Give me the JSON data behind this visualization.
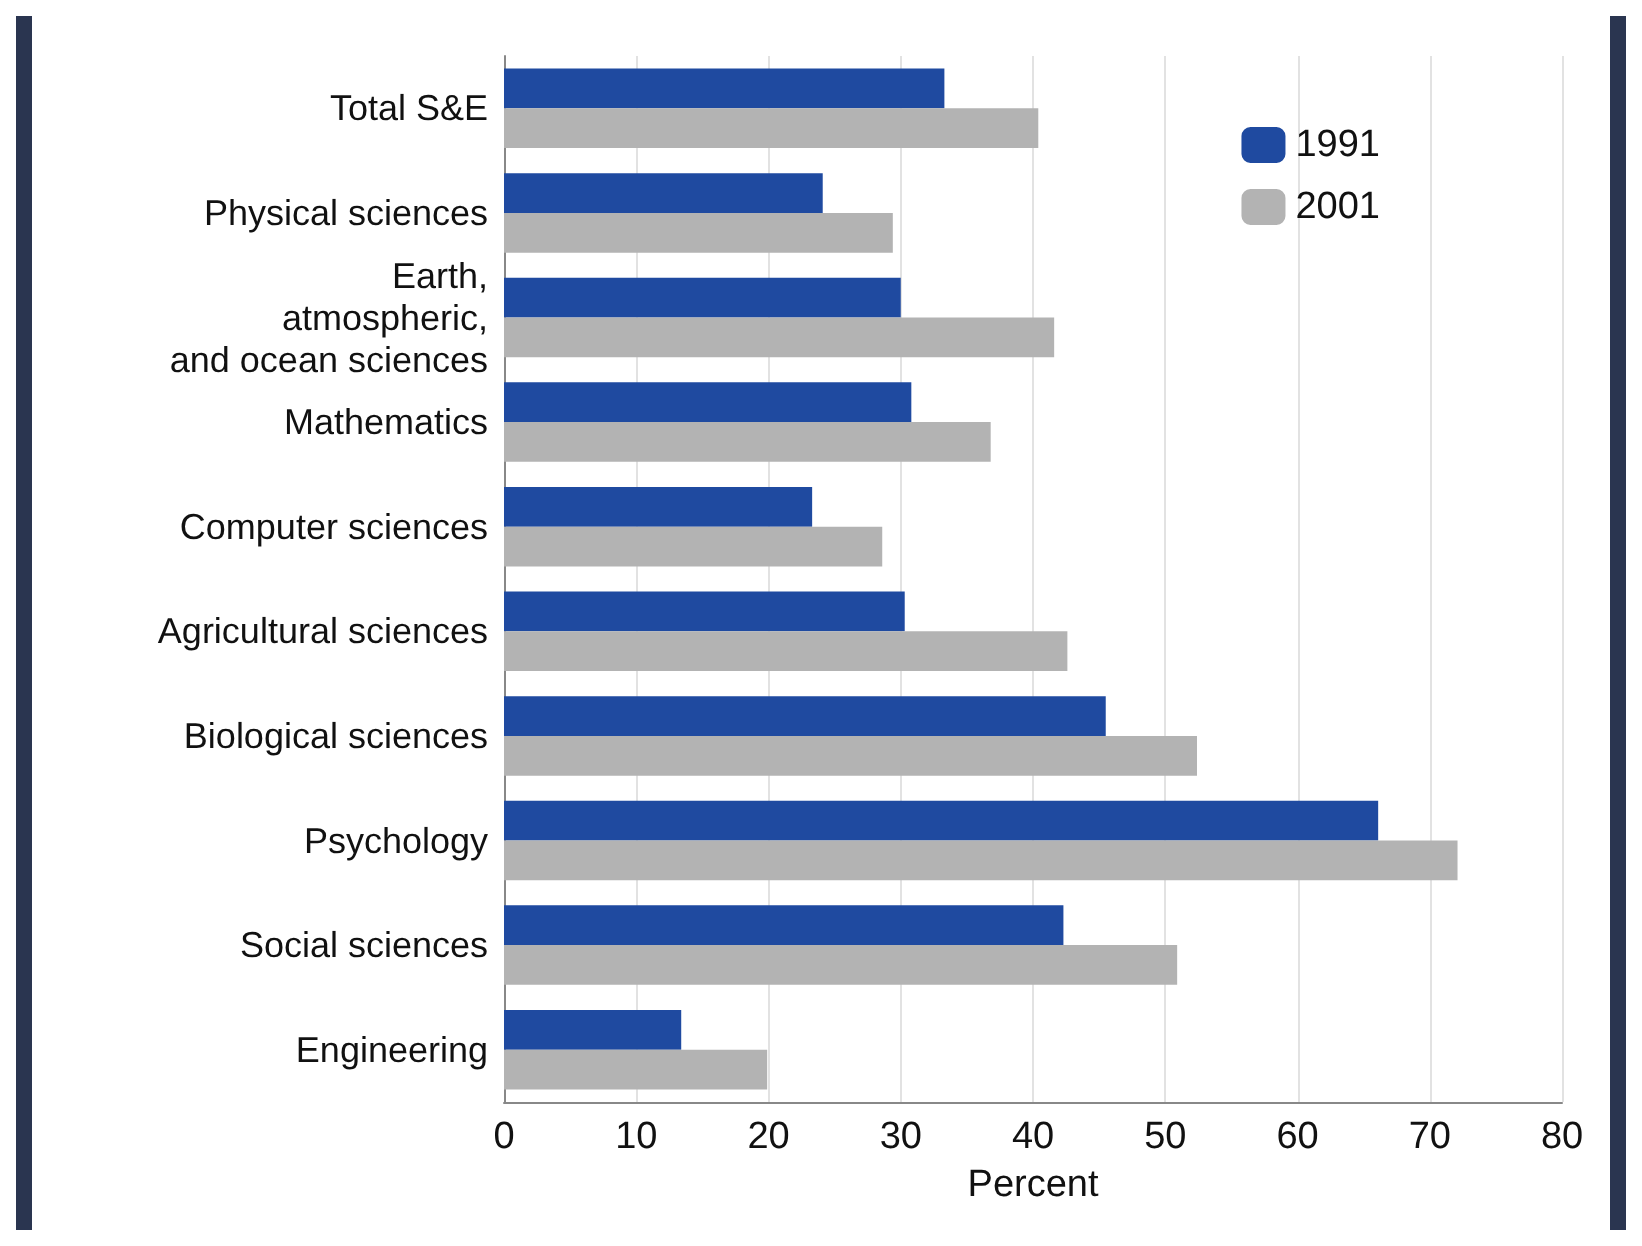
{
  "chart_data": {
    "type": "bar",
    "orientation": "horizontal",
    "xlabel": "Percent",
    "categories": [
      "Total S&E",
      "Physical sciences",
      "Earth,\natmospheric,\nand ocean sciences",
      "Mathematics",
      "Computer sciences",
      "Agricultural sciences",
      "Biological sciences",
      "Psychology",
      "Social sciences",
      "Engineering"
    ],
    "series": [
      {
        "name": "1991",
        "color": "#1f4aa0",
        "values": [
          33.3,
          24.1,
          30.0,
          30.8,
          23.3,
          30.3,
          45.5,
          66.1,
          42.3,
          13.4
        ]
      },
      {
        "name": "2001",
        "color": "#b3b3b3",
        "values": [
          40.4,
          29.4,
          41.6,
          36.8,
          28.6,
          42.6,
          52.4,
          72.1,
          50.9,
          19.9
        ]
      }
    ],
    "xlim": [
      0,
      80
    ],
    "xticks": [
      0,
      10,
      20,
      30,
      40,
      50,
      60,
      70,
      80
    ],
    "grid": "x",
    "legend": "top right"
  }
}
